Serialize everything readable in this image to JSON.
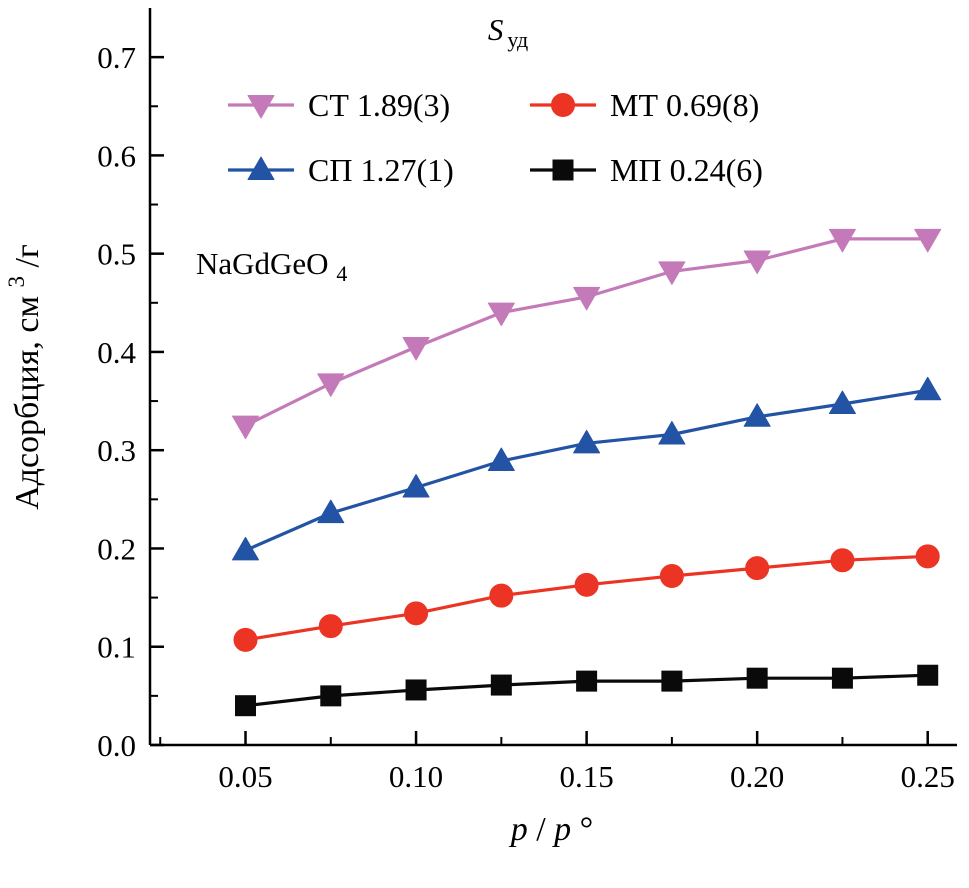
{
  "title": {
    "main": "S",
    "sub": "уд"
  },
  "annotation": {
    "text": "NaGdGeO",
    "sub": "4"
  },
  "axis": {
    "y_label": {
      "text": "Адсорбция, см",
      "sup": "3",
      "after": "/г"
    },
    "x_label": {
      "p1": "p",
      "slash": "/",
      "p2": "p",
      "deg": "°"
    }
  },
  "chart_data": {
    "type": "line",
    "title": "Sуд",
    "xlabel": "p/p°",
    "ylabel": "Адсорбция, см3/г",
    "annotation": "NaGdGeO4",
    "legend_position": "upper center",
    "grid": false,
    "x": [
      0.05,
      0.075,
      0.1,
      0.125,
      0.15,
      0.175,
      0.2,
      0.225,
      0.25
    ],
    "series": [
      {
        "name": "СТ",
        "label": "СТ 1.89(3)",
        "color": "#c47ab8",
        "marker": "triangle-down",
        "values": [
          0.325,
          0.368,
          0.405,
          0.44,
          0.456,
          0.482,
          0.493,
          0.515,
          0.515
        ]
      },
      {
        "name": "СП",
        "label": "СП 1.27(1)",
        "color": "#2353a4",
        "marker": "triangle-up",
        "values": [
          0.198,
          0.236,
          0.262,
          0.289,
          0.307,
          0.316,
          0.334,
          0.347,
          0.361
        ]
      },
      {
        "name": "МТ",
        "label": "МТ 0.69(8)",
        "color": "#ec3424",
        "marker": "circle",
        "values": [
          0.107,
          0.121,
          0.134,
          0.152,
          0.163,
          0.172,
          0.18,
          0.188,
          0.192
        ]
      },
      {
        "name": "МП",
        "label": "МП 0.24(6)",
        "color": "#0a0a0a",
        "marker": "square",
        "values": [
          0.04,
          0.05,
          0.056,
          0.061,
          0.065,
          0.065,
          0.068,
          0.068,
          0.071
        ]
      }
    ],
    "legend_order": [
      0,
      2,
      1,
      3
    ],
    "axes": {
      "x": {
        "range": [
          0.022,
          0.258
        ],
        "major": [
          0.05,
          0.1,
          0.15,
          0.2,
          0.25
        ],
        "major_labels": [
          "0.05",
          "0.10",
          "0.15",
          "0.20",
          "0.25"
        ],
        "minor": [
          0.025,
          0.075,
          0.125,
          0.175,
          0.225
        ]
      },
      "y": {
        "range": [
          0,
          0.75
        ],
        "major": [
          0.0,
          0.1,
          0.2,
          0.3,
          0.4,
          0.5,
          0.6,
          0.7
        ],
        "major_labels": [
          "0.0",
          "0.1",
          "0.2",
          "0.3",
          "0.4",
          "0.5",
          "0.6",
          "0.7"
        ],
        "minor": [
          0.05,
          0.15,
          0.25,
          0.35,
          0.45,
          0.55,
          0.65
        ]
      }
    }
  }
}
